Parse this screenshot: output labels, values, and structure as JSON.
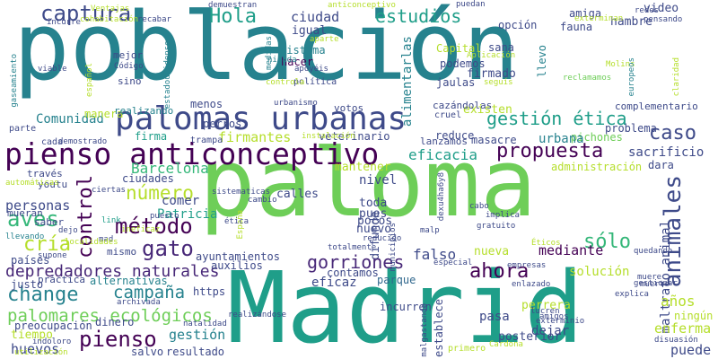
{
  "word_cloud": {
    "words": [
      "población",
      "paloma",
      "Madrid",
      "palomas urbanas",
      "pienso anticonceptivo",
      "propuesta",
      "gestión ética",
      "animales",
      "captura",
      "Hola",
      "estudios",
      "ciudad",
      "igual",
      "sistema",
      "hacer",
      "alimentarlas",
      "Capital",
      "podemos",
      "firmado",
      "jaulas",
      "hambre",
      "video",
      "opción",
      "amiga",
      "fauna",
      "sana",
      "llevo",
      "caso",
      "sacrificio",
      "Comunidad",
      "gracias",
      "problema",
      "urbana",
      "pichones",
      "eficacia",
      "firmantes",
      "firma",
      "menos",
      "perros",
      "votos",
      "veterinario",
      "lanzamos",
      "masacre",
      "reduce",
      "control",
      "número",
      "método",
      "aves",
      "cría",
      "gato",
      "Barcelona",
      "comer",
      "Patricia",
      "personas",
      "nivel",
      "calles",
      "pues",
      "toda",
      "pocos",
      "nuevo",
      "difunde",
      "gorriones",
      "ahora",
      "sólo",
      "falso",
      "mediante",
      "nueva",
      "solución",
      "maltrato animal",
      "depredadores naturales",
      "change",
      "campaña",
      "palomares ecológicos",
      "pienso",
      "gestión",
      "huevos",
      "salvo",
      "resultado",
      "tiempo",
      "preocupación",
      "dinero",
      "contamos",
      "eficaz",
      "parque",
      "ayuntamientos",
      "auxilios",
      "alternativas",
      "práctica",
      "justo",
      "países",
      "mismo",
      "puede",
      "enferma",
      "años",
      "ningún",
      "dejar",
      "posterior",
      "pasa",
      "perrera",
      "incurren",
      "establece",
      "administración",
      "dara",
      "acabar",
      "usted",
      "manera",
      "realizando",
      "demostrado",
      "cada",
      "parte",
      "instalación",
      "trampa",
      "youtu",
      "través",
      "mueran",
      "saber",
      "ciudades",
      "https",
      "llevando",
      "dejo",
      "link",
      "puesto",
      "gestionar",
      "enlazado",
      "explica",
      "muerte",
      "empresas",
      "especial",
      "reclamamos",
      "complementario",
      "cruel",
      "existen",
      "cazándolas",
      "urbanismo",
      "política",
      "apoyéis",
      "Molins",
      "europeos",
      "claridad",
      "pensando",
      "redes",
      "exterminan",
      "Ventajas",
      "cohabitación",
      "recabar",
      "incurre",
      "demuestran",
      "anticonceptivo",
      "puedan",
      "viable",
      "español",
      "estadounidenses",
      "medidas",
      "mejor",
      "Código",
      "Aplicación",
      "seguís",
      "controla",
      "gaseamiento",
      "sino",
      "nidada",
      "natalidad",
      "utilización",
      "indoloro",
      "primero",
      "malgastando",
      "Cardona",
      "exterminio",
      "lucren",
      "amigos",
      "España",
      "retirada",
      "gratuito",
      "implica",
      "sacrificio",
      "municipios",
      "malp",
      "reducido",
      "Éticos",
      "sistematicas",
      "cambio",
      "ineficaz",
      "mad",
      "localidades",
      "supone",
      "automáticas",
      "ciertas",
      "totalmente",
      "quedando",
      "disuasión",
      "realizándose",
      "archivada",
      "tenía",
      "mantener",
      "apoyo",
      "ética",
      "aparte",
      "muere",
      "cabo",
      "Ráw",
      "dexu4ha6y8"
    ]
  }
}
